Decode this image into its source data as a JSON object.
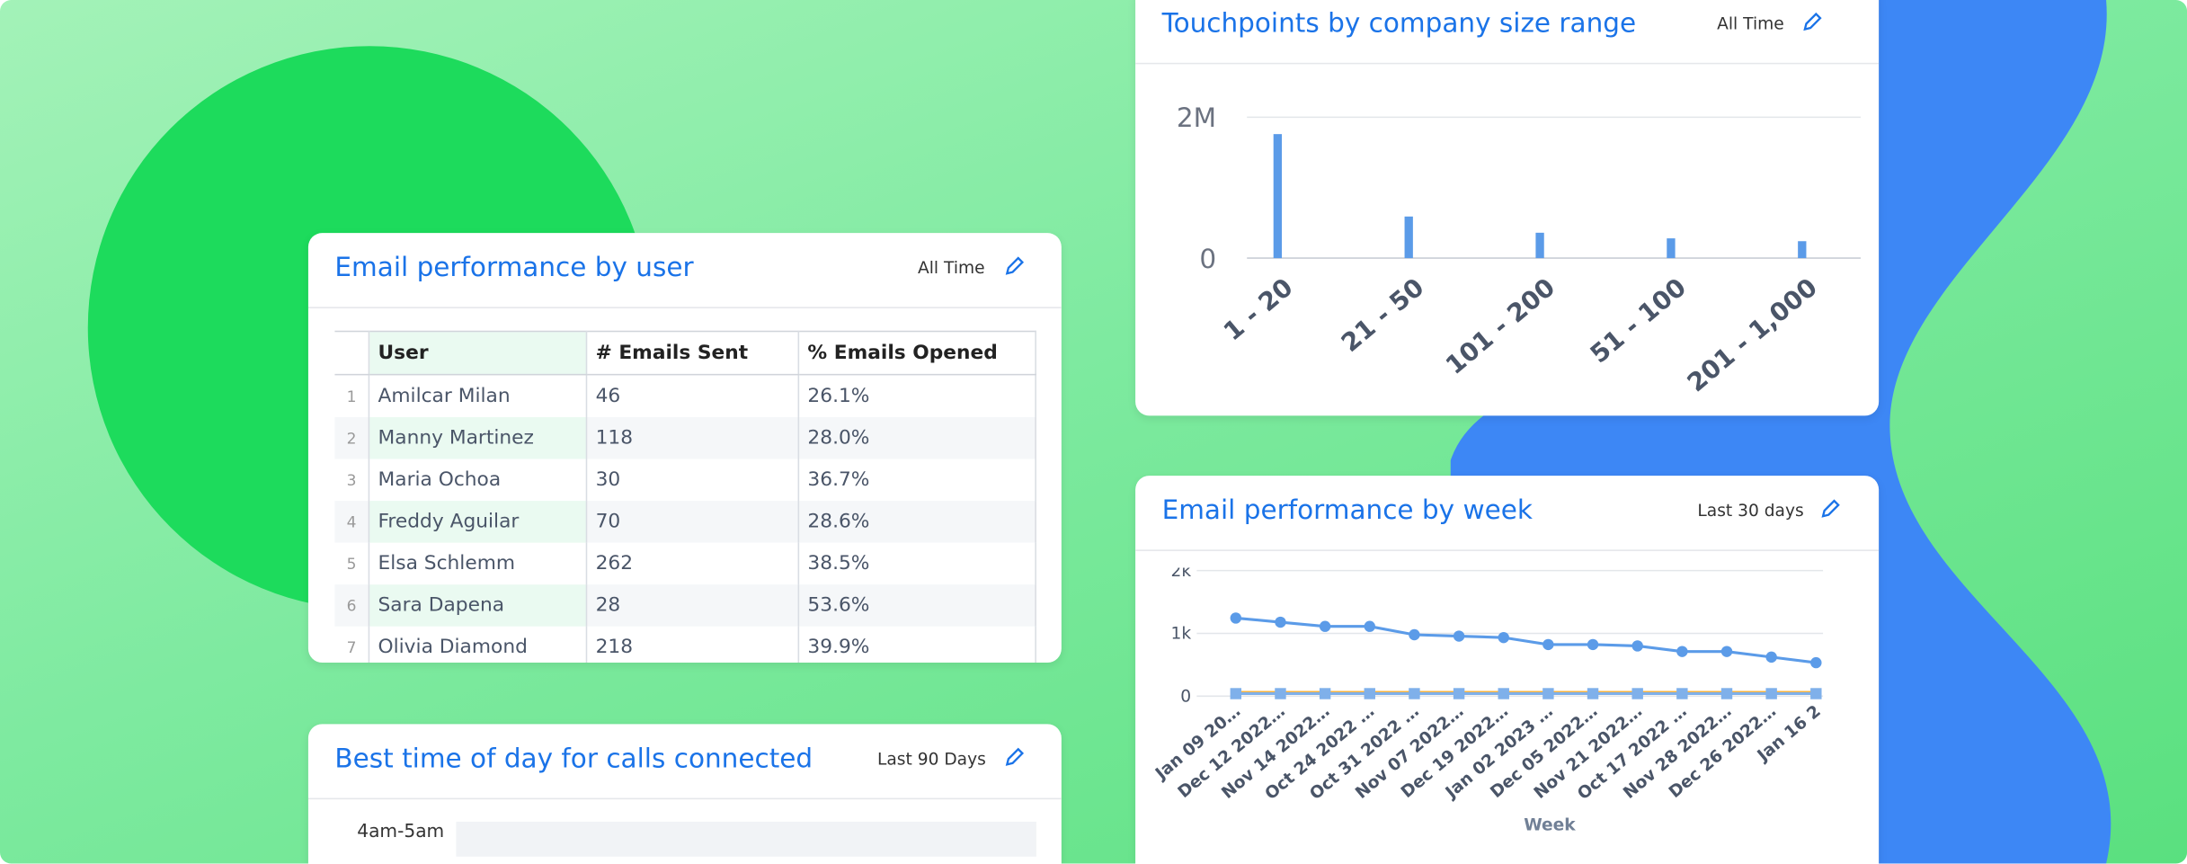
{
  "cards": [
    {
      "title": "Email performance by user",
      "range": "All Time",
      "table": {
        "headers": [
          "User",
          "# Emails Sent",
          "% Emails Opened"
        ],
        "rows": [
          [
            "1",
            "Amilcar Milan",
            "46",
            "26.1%"
          ],
          [
            "2",
            "Manny Martinez",
            "118",
            "28.0%"
          ],
          [
            "3",
            "Maria Ochoa",
            "30",
            "36.7%"
          ],
          [
            "4",
            "Freddy Aguilar",
            "70",
            "28.6%"
          ],
          [
            "5",
            "Elsa Schlemm",
            "262",
            "38.5%"
          ],
          [
            "6",
            "Sara Dapena",
            "28",
            "53.6%"
          ],
          [
            "7",
            "Olivia Diamond",
            "218",
            "39.9%"
          ]
        ]
      }
    },
    {
      "title": "Best time of day for calls connected",
      "range": "Last 90 Days",
      "rows": [
        "4am-5am"
      ]
    },
    {
      "title": "Touchpoints by company size range",
      "range": "All Time",
      "chart_data": {
        "type": "bar",
        "categories": [
          "1 - 20",
          "21 - 50",
          "101 - 200",
          "51 - 100",
          "201 - 1,000"
        ],
        "values": [
          1760000,
          590000,
          360000,
          280000,
          240000
        ],
        "color": "#5b9be8",
        "ylim": [
          0,
          2000000
        ],
        "yticks": [
          0,
          {
            "value": 2000000,
            "label": "2M"
          }
        ],
        "grid": true
      }
    },
    {
      "title": "Email performance by week",
      "range": "Last 30 days",
      "chart_data": {
        "type": "line",
        "x_label": "Week",
        "categories": [
          "Jan 09 20…",
          "Dec 12 2022…",
          "Nov 14 2022…",
          "Oct 24 2022 …",
          "Oct 31 2022 …",
          "Nov 07 2022…",
          "Dec 19 2022…",
          "Jan 02 2023 …",
          "Dec 05 2022…",
          "Nov 21 2022…",
          "Oct 17 2022 …",
          "Nov 28 2022…",
          "Dec 26 2022…",
          "Jan 16 2"
        ],
        "series": [
          {
            "color": "#5b9be8",
            "marker": "circle",
            "values": [
              1244,
              1178,
              1111,
              1111,
              978,
              956,
              933,
              822,
              822,
              800,
              711,
              711,
              622,
              533
            ]
          },
          {
            "color": "#f5b342",
            "marker": "none",
            "values": [
              60,
              60,
              60,
              60,
              60,
              60,
              60,
              60,
              60,
              60,
              60,
              60,
              60,
              60
            ]
          },
          {
            "color": "#7fb0ea",
            "marker": "square",
            "values": [
              40,
              40,
              40,
              40,
              40,
              40,
              40,
              40,
              40,
              40,
              40,
              40,
              40,
              40
            ]
          }
        ],
        "ylim": [
          0,
          2000
        ],
        "yticks": [
          0,
          {
            "value": 1000,
            "label": "1k"
          },
          {
            "value": 2000,
            "label": "2k"
          }
        ],
        "grid": true
      }
    }
  ]
}
